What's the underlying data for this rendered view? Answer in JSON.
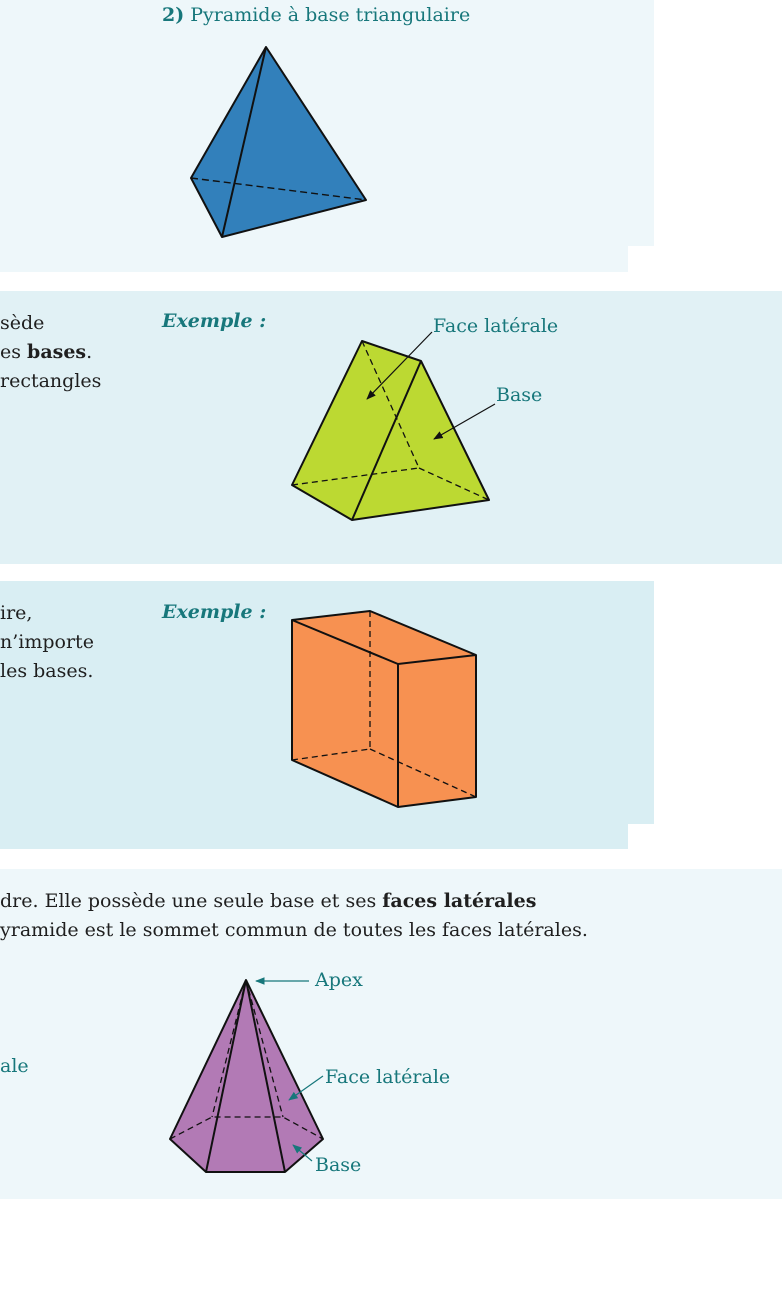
{
  "section1": {
    "title_number": "2)",
    "title_text": "Pyramide à base triangulaire"
  },
  "section2": {
    "line1": "sède",
    "line2_prefix": "es ",
    "line2_bold": "bases",
    "line2_suffix": ".",
    "line3": " rectangles",
    "example_label": "Exemple :",
    "labels": {
      "face_laterale": "Face latérale",
      "base": "Base"
    }
  },
  "section3": {
    "line1": "ire,",
    "line2": "n’importe",
    "line3": " les bases.",
    "example_label": "Exemple :"
  },
  "section4": {
    "line1_prefix": "dre. Elle possède une seule base et ses ",
    "line1_bold": "faces latérales",
    "line2": "yramide est le sommet commun de toutes les faces latérales.",
    "left_fragment": "ale",
    "labels": {
      "apex": "Apex",
      "face_laterale": "Face latérale",
      "base": "Base"
    }
  },
  "colors": {
    "panel_light": "#eef7fa",
    "panel_mid": "#e1f1f5",
    "panel_dark": "#d9eef3",
    "teal": "#17777b",
    "blue_tetrahedron": "#3280bb",
    "green_prism": "#bcd932",
    "orange_box": "#f79151",
    "purple_pyramid": "#b27ab5"
  },
  "icons": [
    "arrow-icon"
  ]
}
